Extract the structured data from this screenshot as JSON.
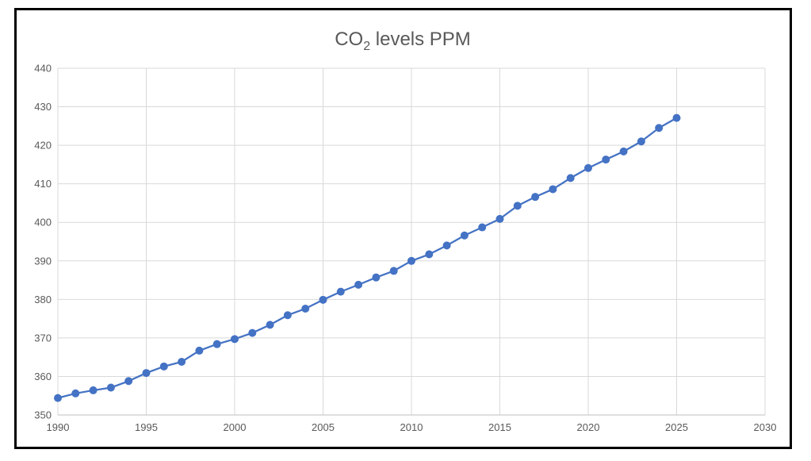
{
  "chart_data": {
    "type": "line",
    "title": {
      "prefix": "CO",
      "subscript": "2",
      "suffix": " levels PPM"
    },
    "xlabel": "",
    "ylabel": "",
    "xlim": [
      1990,
      2030
    ],
    "ylim": [
      350,
      440
    ],
    "xticks": [
      1990,
      1995,
      2000,
      2005,
      2010,
      2015,
      2020,
      2025,
      2030
    ],
    "yticks": [
      350,
      360,
      370,
      380,
      390,
      400,
      410,
      420,
      430,
      440
    ],
    "grid": true,
    "legend": "none",
    "series": [
      {
        "color": "#4472c4",
        "marker": "circle",
        "x": [
          1990,
          1991,
          1992,
          1993,
          1994,
          1995,
          1996,
          1997,
          1998,
          1999,
          2000,
          2001,
          2002,
          2003,
          2004,
          2005,
          2006,
          2007,
          2008,
          2009,
          2010,
          2011,
          2012,
          2013,
          2014,
          2015,
          2016,
          2017,
          2018,
          2019,
          2020,
          2021,
          2022,
          2023,
          2024,
          2025
        ],
        "values": [
          354.4,
          355.6,
          356.4,
          357.1,
          358.8,
          360.9,
          362.6,
          363.8,
          366.7,
          368.4,
          369.7,
          371.3,
          373.4,
          375.9,
          377.6,
          379.9,
          382.0,
          383.8,
          385.7,
          387.4,
          390.0,
          391.7,
          394.0,
          396.6,
          398.7,
          400.9,
          404.3,
          406.6,
          408.6,
          411.5,
          414.1,
          416.3,
          418.4,
          421.0,
          424.5,
          427.1
        ]
      }
    ]
  }
}
